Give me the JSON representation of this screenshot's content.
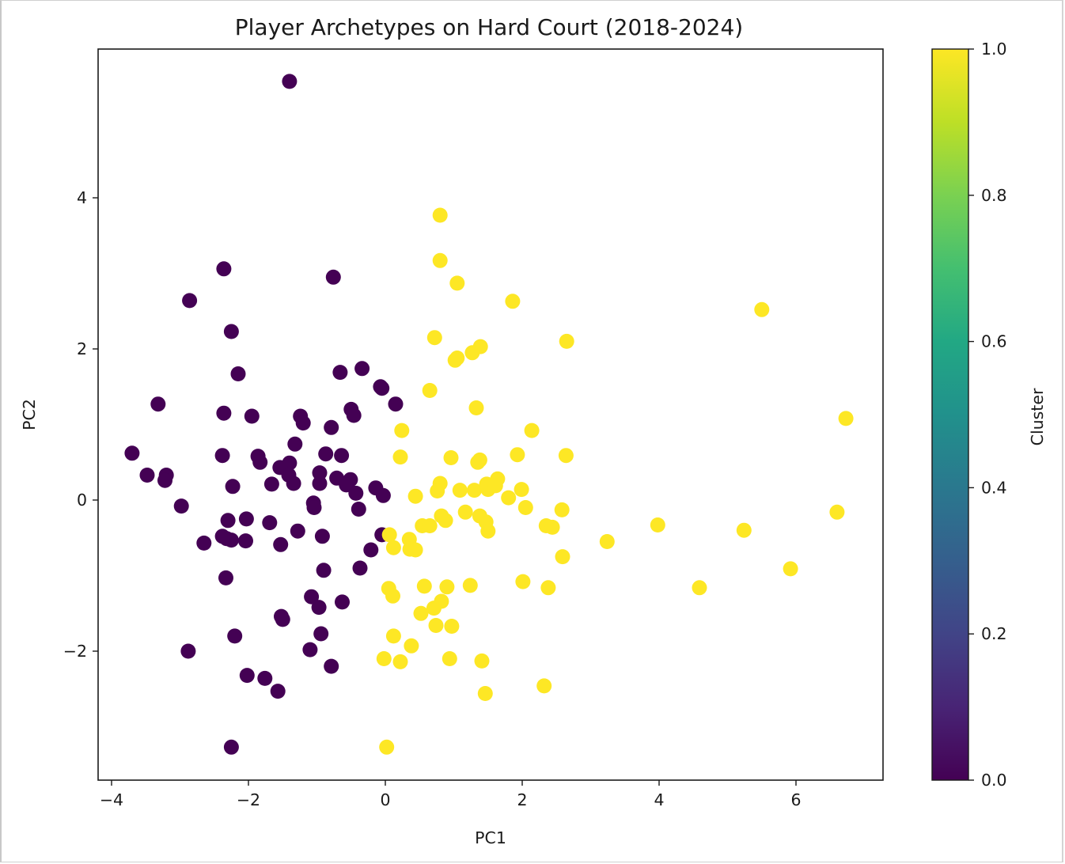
{
  "chart_data": {
    "type": "scatter",
    "title": "Player Archetypes on Hard Court (2018-2024)",
    "xlabel": "PC1",
    "ylabel": "PC2",
    "xlim": [
      -4.2,
      7.25
    ],
    "ylim": [
      -3.7,
      5.95
    ],
    "xticks": [
      -4,
      -2,
      0,
      2,
      4,
      6
    ],
    "xtick_labels": [
      "−4",
      "−2",
      "0",
      "2",
      "4",
      "6"
    ],
    "yticks": [
      -2,
      0,
      2,
      4
    ],
    "ytick_labels": [
      "−2",
      "0",
      "2",
      "4"
    ],
    "grid": false,
    "legend": "none",
    "colorbar": {
      "label": "Cluster",
      "colormap": "viridis",
      "range": [
        0.0,
        1.0
      ],
      "ticks": [
        0.0,
        0.2,
        0.4,
        0.6,
        0.8,
        1.0
      ],
      "tick_labels": [
        "0.0",
        "0.2",
        "0.4",
        "0.6",
        "0.8",
        "1.0"
      ]
    },
    "series": [
      {
        "name": "Cluster 0",
        "cluster": 0,
        "color": "#440154",
        "points": [
          [
            -1.4,
            5.54
          ],
          [
            -2.36,
            3.06
          ],
          [
            -0.76,
            2.95
          ],
          [
            -2.86,
            2.64
          ],
          [
            -2.25,
            2.23
          ],
          [
            -2.15,
            1.67
          ],
          [
            -0.66,
            1.69
          ],
          [
            -0.34,
            1.74
          ],
          [
            -0.07,
            1.5
          ],
          [
            -0.05,
            1.48
          ],
          [
            -3.32,
            1.27
          ],
          [
            -2.36,
            1.15
          ],
          [
            -1.95,
            1.11
          ],
          [
            -1.24,
            1.11
          ],
          [
            -1.2,
            1.02
          ],
          [
            -0.5,
            1.2
          ],
          [
            -0.46,
            1.12
          ],
          [
            0.15,
            1.27
          ],
          [
            -0.79,
            0.96
          ],
          [
            -1.32,
            0.74
          ],
          [
            -3.7,
            0.62
          ],
          [
            -3.48,
            0.33
          ],
          [
            -3.2,
            0.33
          ],
          [
            -3.22,
            0.26
          ],
          [
            -2.98,
            -0.08
          ],
          [
            -2.38,
            0.59
          ],
          [
            -1.86,
            0.58
          ],
          [
            -1.83,
            0.5
          ],
          [
            -1.4,
            0.49
          ],
          [
            -1.54,
            0.43
          ],
          [
            -0.87,
            0.61
          ],
          [
            -0.64,
            0.59
          ],
          [
            -1.41,
            0.33
          ],
          [
            -1.66,
            0.21
          ],
          [
            -1.34,
            0.22
          ],
          [
            -0.96,
            0.22
          ],
          [
            -0.71,
            0.29
          ],
          [
            -0.51,
            0.27
          ],
          [
            -0.57,
            0.2
          ],
          [
            -2.23,
            0.18
          ],
          [
            -0.96,
            0.36
          ],
          [
            -0.14,
            0.16
          ],
          [
            -0.03,
            0.06
          ],
          [
            -0.43,
            0.09
          ],
          [
            -0.39,
            -0.12
          ],
          [
            -1.05,
            -0.04
          ],
          [
            -1.04,
            -0.1
          ],
          [
            -2.3,
            -0.27
          ],
          [
            -1.69,
            -0.3
          ],
          [
            -2.03,
            -0.25
          ],
          [
            -1.28,
            -0.41
          ],
          [
            -2.65,
            -0.57
          ],
          [
            -2.32,
            -0.51
          ],
          [
            -2.25,
            -0.53
          ],
          [
            -2.04,
            -0.54
          ],
          [
            -2.38,
            -0.48
          ],
          [
            -1.53,
            -0.59
          ],
          [
            -0.92,
            -0.48
          ],
          [
            -0.05,
            -0.46
          ],
          [
            -0.21,
            -0.66
          ],
          [
            -0.37,
            -0.9
          ],
          [
            -0.9,
            -0.93
          ],
          [
            -2.33,
            -1.03
          ],
          [
            -0.63,
            -1.35
          ],
          [
            -1.08,
            -1.28
          ],
          [
            -0.97,
            -1.42
          ],
          [
            -1.52,
            -1.54
          ],
          [
            -1.5,
            -1.58
          ],
          [
            -0.94,
            -1.77
          ],
          [
            -2.2,
            -1.8
          ],
          [
            -2.88,
            -2.0
          ],
          [
            -1.1,
            -1.98
          ],
          [
            -0.79,
            -2.2
          ],
          [
            -2.02,
            -2.32
          ],
          [
            -1.76,
            -2.36
          ],
          [
            -1.57,
            -2.53
          ],
          [
            -2.25,
            -3.27
          ]
        ]
      },
      {
        "name": "Cluster 1",
        "cluster": 1,
        "color": "#fde725",
        "points": [
          [
            0.8,
            3.77
          ],
          [
            0.8,
            3.17
          ],
          [
            1.05,
            2.87
          ],
          [
            1.86,
            2.63
          ],
          [
            5.5,
            2.52
          ],
          [
            0.72,
            2.15
          ],
          [
            2.65,
            2.1
          ],
          [
            1.05,
            1.88
          ],
          [
            1.02,
            1.85
          ],
          [
            1.39,
            2.03
          ],
          [
            1.27,
            1.95
          ],
          [
            0.65,
            1.45
          ],
          [
            1.33,
            1.22
          ],
          [
            0.24,
            0.92
          ],
          [
            2.14,
            0.92
          ],
          [
            0.22,
            0.57
          ],
          [
            0.96,
            0.56
          ],
          [
            1.38,
            0.53
          ],
          [
            1.35,
            0.5
          ],
          [
            1.93,
            0.6
          ],
          [
            2.64,
            0.59
          ],
          [
            6.73,
            1.08
          ],
          [
            0.8,
            0.22
          ],
          [
            0.76,
            0.12
          ],
          [
            1.09,
            0.13
          ],
          [
            1.3,
            0.13
          ],
          [
            1.5,
            0.14
          ],
          [
            1.48,
            0.21
          ],
          [
            1.64,
            0.28
          ],
          [
            1.99,
            0.14
          ],
          [
            1.8,
            0.03
          ],
          [
            1.61,
            0.19
          ],
          [
            0.44,
            0.05
          ],
          [
            0.54,
            -0.34
          ],
          [
            0.82,
            -0.21
          ],
          [
            0.88,
            -0.27
          ],
          [
            0.65,
            -0.34
          ],
          [
            1.17,
            -0.16
          ],
          [
            1.38,
            -0.21
          ],
          [
            1.47,
            -0.29
          ],
          [
            1.5,
            -0.41
          ],
          [
            2.05,
            -0.1
          ],
          [
            2.58,
            -0.13
          ],
          [
            2.35,
            -0.34
          ],
          [
            2.44,
            -0.36
          ],
          [
            3.98,
            -0.33
          ],
          [
            6.6,
            -0.16
          ],
          [
            5.24,
            -0.4
          ],
          [
            3.24,
            -0.55
          ],
          [
            0.06,
            -0.46
          ],
          [
            0.12,
            -0.63
          ],
          [
            0.35,
            -0.52
          ],
          [
            0.36,
            -0.65
          ],
          [
            0.44,
            -0.66
          ],
          [
            2.59,
            -0.75
          ],
          [
            5.92,
            -0.91
          ],
          [
            0.57,
            -1.14
          ],
          [
            0.05,
            -1.17
          ],
          [
            0.11,
            -1.27
          ],
          [
            0.9,
            -1.15
          ],
          [
            1.24,
            -1.13
          ],
          [
            2.01,
            -1.08
          ],
          [
            2.38,
            -1.16
          ],
          [
            4.59,
            -1.16
          ],
          [
            0.52,
            -1.5
          ],
          [
            0.71,
            -1.43
          ],
          [
            0.82,
            -1.34
          ],
          [
            0.74,
            -1.66
          ],
          [
            0.97,
            -1.67
          ],
          [
            0.12,
            -1.8
          ],
          [
            0.38,
            -1.93
          ],
          [
            -0.02,
            -2.1
          ],
          [
            0.22,
            -2.14
          ],
          [
            0.94,
            -2.1
          ],
          [
            1.41,
            -2.13
          ],
          [
            1.46,
            -2.56
          ],
          [
            2.32,
            -2.46
          ],
          [
            0.02,
            -3.27
          ]
        ]
      }
    ]
  }
}
